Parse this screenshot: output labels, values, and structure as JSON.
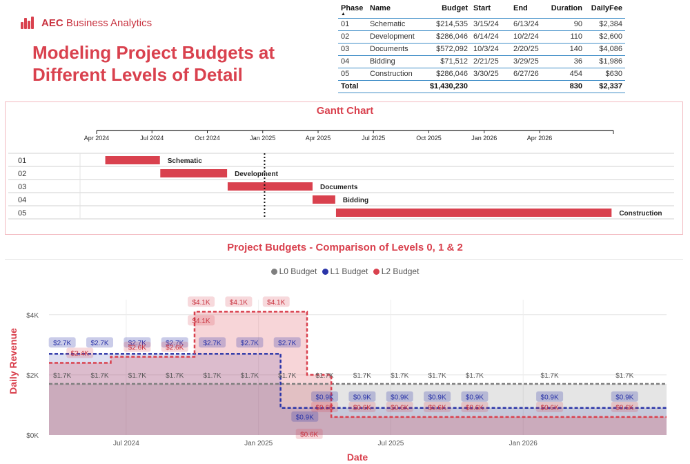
{
  "header": {
    "logo_bold": "AEC",
    "logo_rest": "Business Analytics",
    "title": "Modeling Project Budgets at Different Levels of Detail"
  },
  "phase_table": {
    "columns": [
      "Phase",
      "Name",
      "Budget",
      "Start",
      "End",
      "Duration",
      "DailyFee"
    ],
    "rows": [
      [
        "01",
        "Schematic",
        "$214,535",
        "3/15/24",
        "6/13/24",
        "90",
        "$2,384"
      ],
      [
        "02",
        "Development",
        "$286,046",
        "6/14/24",
        "10/2/24",
        "110",
        "$2,600"
      ],
      [
        "03",
        "Documents",
        "$572,092",
        "10/3/24",
        "2/20/25",
        "140",
        "$4,086"
      ],
      [
        "04",
        "Bidding",
        "$71,512",
        "2/21/25",
        "3/29/25",
        "36",
        "$1,986"
      ],
      [
        "05",
        "Construction",
        "$286,046",
        "3/30/25",
        "6/27/26",
        "454",
        "$630"
      ]
    ],
    "total": {
      "label": "Total",
      "budget": "$1,430,230",
      "duration": "830",
      "dailyfee": "$2,337"
    }
  },
  "colors": {
    "accent": "#d9414e",
    "l0": "#7f7f7f",
    "l1": "#2b35a8",
    "l2": "#d9414e",
    "table_rule": "#3b8bc6"
  },
  "chart_data": [
    {
      "type": "gantt",
      "title": "Gantt Chart",
      "axis_ticks": [
        "Apr 2024",
        "Jul 2024",
        "Oct 2024",
        "Jan 2025",
        "Apr 2025",
        "Jul 2025",
        "Oct 2025",
        "Jan 2026",
        "Apr 2026"
      ],
      "axis_tick_months": [
        1,
        4,
        7,
        10,
        13,
        16,
        19,
        22,
        25
      ],
      "axis_range_months": [
        1,
        29
      ],
      "today_marker_month": 10.1,
      "tasks": [
        {
          "phase": "01",
          "name": "Schematic",
          "start_month": 1.47,
          "end_month": 4.43
        },
        {
          "phase": "02",
          "name": "Development",
          "start_month": 4.45,
          "end_month": 8.07
        },
        {
          "phase": "03",
          "name": "Documents",
          "start_month": 8.1,
          "end_month": 12.7
        },
        {
          "phase": "04",
          "name": "Bidding",
          "start_month": 12.7,
          "end_month": 13.93
        },
        {
          "phase": "05",
          "name": "Construction",
          "start_month": 13.97,
          "end_month": 28.9
        }
      ]
    },
    {
      "type": "area",
      "title": "Project Budgets - Comparison of Levels 0, 1 & 2",
      "xlabel": "Date",
      "ylabel": "Daily Revenue",
      "ylim": [
        0,
        4500
      ],
      "y_ticks": [
        0,
        2000,
        4000
      ],
      "y_tick_labels": [
        "$0K",
        "$2K",
        "$4K"
      ],
      "x_ticks": [
        "Jul 2024",
        "Jan 2025",
        "Jul 2025",
        "Jan 2026"
      ],
      "x_tick_months": [
        6,
        12,
        18,
        24
      ],
      "x_range_months": [
        2.5,
        30.5
      ],
      "legend": [
        "L0 Budget",
        "L1 Budget",
        "L2 Budget"
      ],
      "legend_position": "top-center",
      "series": [
        {
          "name": "L0 Budget",
          "steps": [
            {
              "from": 2.5,
              "to": 30.5,
              "value": 1700
            }
          ]
        },
        {
          "name": "L1 Budget",
          "steps": [
            {
              "from": 2.5,
              "to": 13.0,
              "value": 2700
            },
            {
              "from": 13.0,
              "to": 30.5,
              "value": 900
            }
          ]
        },
        {
          "name": "L2 Budget",
          "steps": [
            {
              "from": 2.5,
              "to": 5.3,
              "value": 2400
            },
            {
              "from": 5.3,
              "to": 9.1,
              "value": 2600
            },
            {
              "from": 9.1,
              "to": 14.2,
              "value": 4100
            },
            {
              "from": 14.2,
              "to": 15.3,
              "value": 2000
            },
            {
              "from": 15.3,
              "to": 30.5,
              "value": 600
            }
          ]
        }
      ],
      "data_labels": {
        "l0": {
          "text": "$1.7K",
          "months": [
            3.1,
            4.8,
            6.5,
            8.2,
            9.9,
            11.6,
            13.3,
            15.0,
            16.7,
            18.4,
            20.1,
            21.8,
            25.2,
            28.6
          ]
        },
        "l1": [
          {
            "text": "$2.7K",
            "months": [
              3.1,
              4.8,
              6.5,
              8.2,
              9.9,
              11.6,
              13.3
            ]
          },
          {
            "text": "$0.9K",
            "months": [
              15.0,
              16.7,
              18.4,
              20.1,
              21.8,
              25.2,
              28.6
            ]
          },
          {
            "text": "$0.9K",
            "months": [
              14.1
            ],
            "low": true
          }
        ],
        "l2": [
          {
            "text": "$2.4K",
            "months": [
              3.9
            ]
          },
          {
            "text": "$2.6K",
            "months": [
              6.5,
              8.2
            ]
          },
          {
            "text": "$4.1K",
            "months": [
              9.4,
              11.1,
              12.8
            ]
          },
          {
            "text": "$4.1K",
            "months": [
              9.4
            ],
            "inner": true
          },
          {
            "text": "$0.6K",
            "months": [
              15.0,
              16.7,
              18.4,
              20.1,
              21.8,
              25.2,
              28.6
            ]
          },
          {
            "text": "$0.6K",
            "months": [
              14.3
            ],
            "low": true
          }
        ]
      }
    }
  ]
}
